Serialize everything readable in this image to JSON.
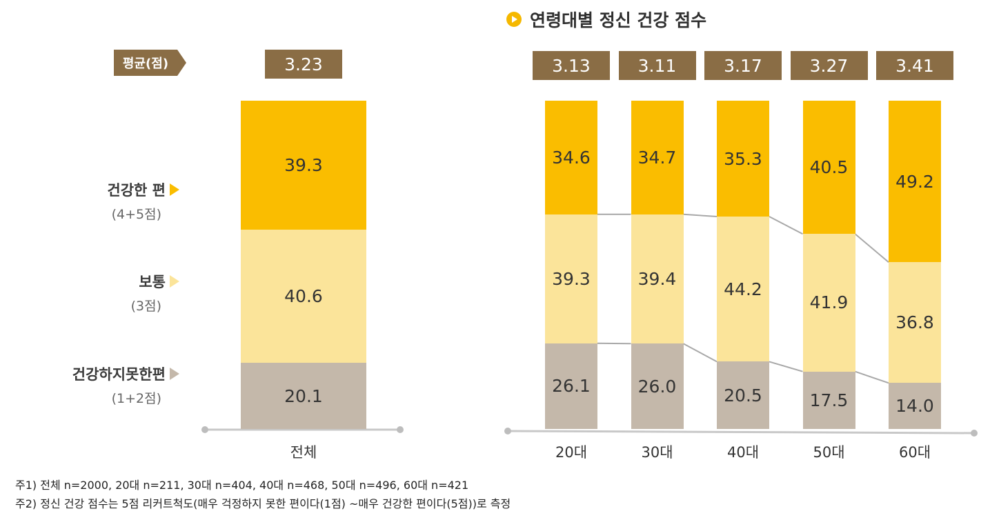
{
  "title": "연령대별 정신 건강 점수",
  "avg_label": "평균(점)",
  "colors": {
    "healthy": "#fabd00",
    "normal": "#fbe49a",
    "unhealthy": "#c4b8aa",
    "score_bg": "#8a6d45"
  },
  "legend": [
    {
      "label": "건강한 편",
      "sub": "(4+5점)"
    },
    {
      "label": "보통",
      "sub": "(3점)"
    },
    {
      "label": "건강하지못한편",
      "sub": "(1+2점)"
    }
  ],
  "chart_data": [
    {
      "type": "bar",
      "stacked": true,
      "title": "",
      "categories": [
        "전체"
      ],
      "scores": [
        "3.23"
      ],
      "series": [
        {
          "name": "건강하지못한편",
          "values": [
            "20.1"
          ]
        },
        {
          "name": "보통",
          "values": [
            "40.6"
          ]
        },
        {
          "name": "건강한 편",
          "values": [
            "39.3"
          ]
        }
      ],
      "ylim": [
        0,
        100
      ]
    },
    {
      "type": "bar",
      "stacked": true,
      "title": "연령대별 정신 건강 점수",
      "categories": [
        "20대",
        "30대",
        "40대",
        "50대",
        "60대"
      ],
      "scores": [
        "3.13",
        "3.11",
        "3.17",
        "3.27",
        "3.41"
      ],
      "series": [
        {
          "name": "건강하지못한편",
          "values": [
            "26.1",
            "26.0",
            "20.5",
            "17.5",
            "14.0"
          ]
        },
        {
          "name": "보통",
          "values": [
            "39.3",
            "39.4",
            "44.2",
            "41.9",
            "36.8"
          ]
        },
        {
          "name": "건강한 편",
          "values": [
            "34.6",
            "34.7",
            "35.3",
            "40.5",
            "49.2"
          ]
        }
      ],
      "ylim": [
        0,
        100
      ]
    }
  ],
  "notes": [
    "주1) 전체 n=2000, 20대 n=211, 30대 n=404, 40대 n=468, 50대 n=496, 60대 n=421",
    "주2) 정신 건강 점수는 5점 리커트척도(매우 걱정하지 못한 편이다(1점) ~매우 건강한 편이다(5점))로 측정"
  ]
}
